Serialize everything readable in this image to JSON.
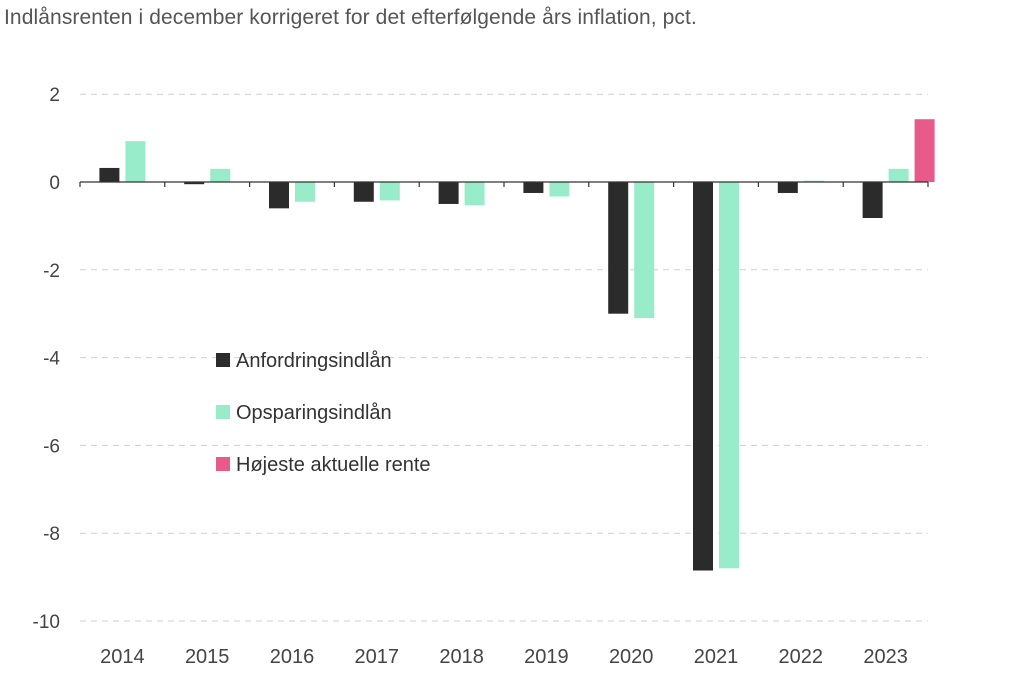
{
  "chart_data": {
    "type": "bar",
    "title": "Indlånsrenten i december korrigeret for det efterfølgende års inflation, pct.",
    "categories": [
      "2014",
      "2015",
      "2016",
      "2017",
      "2018",
      "2019",
      "2020",
      "2021",
      "2022",
      "2023"
    ],
    "series": [
      {
        "name": "Anfordringsindlån",
        "color": "#2b2b2b",
        "values": [
          0.32,
          -0.05,
          -0.6,
          -0.45,
          -0.5,
          -0.25,
          -3.0,
          -8.85,
          -0.25,
          -0.82
        ]
      },
      {
        "name": "Opsparingsindlån",
        "color": "#99ecc9",
        "values": [
          0.93,
          0.3,
          -0.45,
          -0.42,
          -0.53,
          -0.33,
          -3.1,
          -8.8,
          0.03,
          0.3
        ]
      },
      {
        "name": "Højeste aktuelle rente",
        "color": "#e85a8a",
        "values": [
          null,
          null,
          null,
          null,
          null,
          null,
          null,
          null,
          null,
          1.43
        ]
      }
    ],
    "yticks": [
      "2",
      "0",
      "-2",
      "-4",
      "-6",
      "-8",
      "-10"
    ],
    "ylim": [
      -10,
      2
    ],
    "grid": true,
    "legend_position": "center-left"
  }
}
